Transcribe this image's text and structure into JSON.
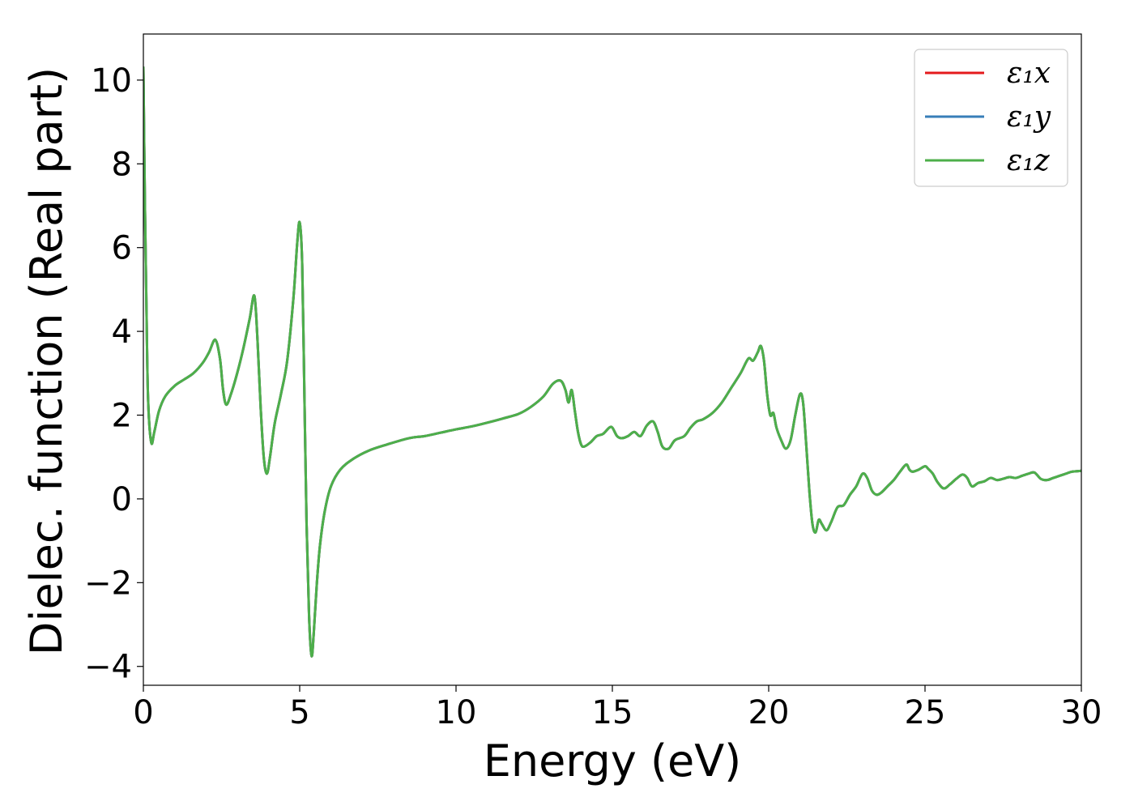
{
  "chart_data": {
    "type": "line",
    "xlabel": "Energy (eV)",
    "ylabel": "Dielec. function (Real part)",
    "xlim": [
      0,
      30
    ],
    "ylim": [
      -4.45,
      11.1
    ],
    "xticks": [
      0,
      5,
      10,
      15,
      20,
      25,
      30
    ],
    "xtick_labels": [
      "0",
      "5",
      "10",
      "15",
      "20",
      "25",
      "30"
    ],
    "yticks": [
      -4,
      -2,
      0,
      2,
      4,
      6,
      8,
      10
    ],
    "ytick_labels": [
      "−4",
      "−2",
      "0",
      "2",
      "4",
      "6",
      "8",
      "10"
    ],
    "grid": false,
    "legend_position": "top-right",
    "series": [
      {
        "name": "ε₁x",
        "color": "#e41a1c",
        "x": [
          0.0,
          0.05,
          0.1,
          0.15,
          0.25,
          0.35,
          0.5,
          0.7,
          1.0,
          1.3,
          1.6,
          1.9,
          2.1,
          2.3,
          2.45,
          2.55,
          2.65,
          2.8,
          3.0,
          3.2,
          3.4,
          3.55,
          3.65,
          3.75,
          3.85,
          3.95,
          4.05,
          4.2,
          4.4,
          4.6,
          4.8,
          4.92,
          5.0,
          5.08,
          5.15,
          5.22,
          5.3,
          5.38,
          5.45,
          5.55,
          5.65,
          5.8,
          6.0,
          6.3,
          6.7,
          7.2,
          7.8,
          8.5,
          9.0,
          9.5,
          10.0,
          10.5,
          11.0,
          11.5,
          12.0,
          12.4,
          12.8,
          13.1,
          13.35,
          13.5,
          13.6,
          13.7,
          13.8,
          13.9,
          14.0,
          14.1,
          14.3,
          14.5,
          14.7,
          14.9,
          15.0,
          15.15,
          15.3,
          15.5,
          15.7,
          15.9,
          16.1,
          16.3,
          16.45,
          16.6,
          16.8,
          17.0,
          17.3,
          17.5,
          17.7,
          17.9,
          18.2,
          18.5,
          18.8,
          19.1,
          19.35,
          19.5,
          19.65,
          19.75,
          19.85,
          19.95,
          20.05,
          20.15,
          20.25,
          20.4,
          20.55,
          20.7,
          20.85,
          21.0,
          21.1,
          21.2,
          21.3,
          21.4,
          21.5,
          21.6,
          21.7,
          21.85,
          22.0,
          22.2,
          22.4,
          22.6,
          22.8,
          23.0,
          23.15,
          23.3,
          23.45,
          23.6,
          23.8,
          24.0,
          24.2,
          24.4,
          24.5,
          24.6,
          24.8,
          25.0,
          25.1,
          25.25,
          25.4,
          25.6,
          25.8,
          26.0,
          26.2,
          26.35,
          26.5,
          26.7,
          26.9,
          27.1,
          27.3,
          27.5,
          27.7,
          27.9,
          28.1,
          28.3,
          28.5,
          28.7,
          28.9,
          29.1,
          29.3,
          29.5,
          29.7,
          30.0
        ],
        "y": [
          10.3,
          7.0,
          4.5,
          2.4,
          1.35,
          1.6,
          2.1,
          2.45,
          2.7,
          2.85,
          3.0,
          3.25,
          3.5,
          3.8,
          3.35,
          2.6,
          2.25,
          2.5,
          3.0,
          3.6,
          4.3,
          4.85,
          3.8,
          2.2,
          1.0,
          0.6,
          1.0,
          1.8,
          2.5,
          3.3,
          4.8,
          6.1,
          6.6,
          5.6,
          2.5,
          -0.6,
          -2.8,
          -3.75,
          -3.2,
          -2.0,
          -1.1,
          -0.3,
          0.3,
          0.7,
          0.95,
          1.15,
          1.3,
          1.45,
          1.5,
          1.58,
          1.66,
          1.73,
          1.82,
          1.92,
          2.03,
          2.2,
          2.45,
          2.75,
          2.82,
          2.6,
          2.3,
          2.6,
          2.1,
          1.6,
          1.3,
          1.25,
          1.35,
          1.5,
          1.55,
          1.7,
          1.7,
          1.5,
          1.45,
          1.5,
          1.6,
          1.5,
          1.75,
          1.85,
          1.6,
          1.25,
          1.2,
          1.4,
          1.5,
          1.7,
          1.85,
          1.9,
          2.05,
          2.3,
          2.65,
          3.0,
          3.35,
          3.3,
          3.5,
          3.65,
          3.3,
          2.5,
          2.0,
          2.05,
          1.7,
          1.4,
          1.2,
          1.4,
          2.0,
          2.5,
          2.3,
          1.3,
          0.2,
          -0.6,
          -0.8,
          -0.5,
          -0.6,
          -0.75,
          -0.55,
          -0.2,
          -0.15,
          0.1,
          0.3,
          0.6,
          0.5,
          0.2,
          0.1,
          0.15,
          0.3,
          0.45,
          0.65,
          0.82,
          0.7,
          0.65,
          0.7,
          0.78,
          0.72,
          0.6,
          0.4,
          0.25,
          0.35,
          0.48,
          0.58,
          0.5,
          0.3,
          0.38,
          0.42,
          0.5,
          0.45,
          0.48,
          0.52,
          0.5,
          0.55,
          0.6,
          0.63,
          0.48,
          0.45,
          0.5,
          0.55,
          0.6,
          0.65,
          0.67
        ]
      },
      {
        "name": "ε₁y",
        "color": "#377eb8",
        "same_as": 0
      },
      {
        "name": "ε₁z",
        "color": "#4daf4a",
        "same_as": 0
      }
    ]
  }
}
